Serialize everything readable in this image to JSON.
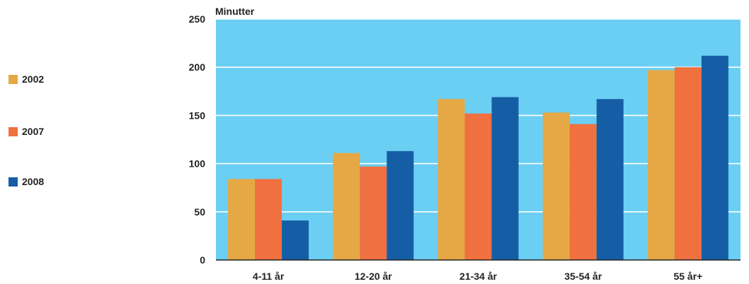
{
  "chart_data": {
    "type": "bar",
    "ylabel": "Minutter",
    "categories": [
      "4-11 år",
      "12-20 år",
      "21-34 år",
      "35-54 år",
      "55 år+"
    ],
    "series": [
      {
        "name": "2002",
        "color": "#E5A845",
        "values": [
          84,
          111,
          167,
          153,
          197
        ]
      },
      {
        "name": "2007",
        "color": "#F07040",
        "values": [
          84,
          97,
          152,
          141,
          200
        ]
      },
      {
        "name": "2008",
        "color": "#155EA5",
        "values": [
          41,
          113,
          169,
          167,
          212
        ]
      }
    ],
    "ylim": [
      0,
      250
    ],
    "yticks": [
      0,
      50,
      100,
      150,
      200,
      250
    ],
    "grid": true,
    "legend_position": "left",
    "background_color": "#6BCFF3"
  }
}
